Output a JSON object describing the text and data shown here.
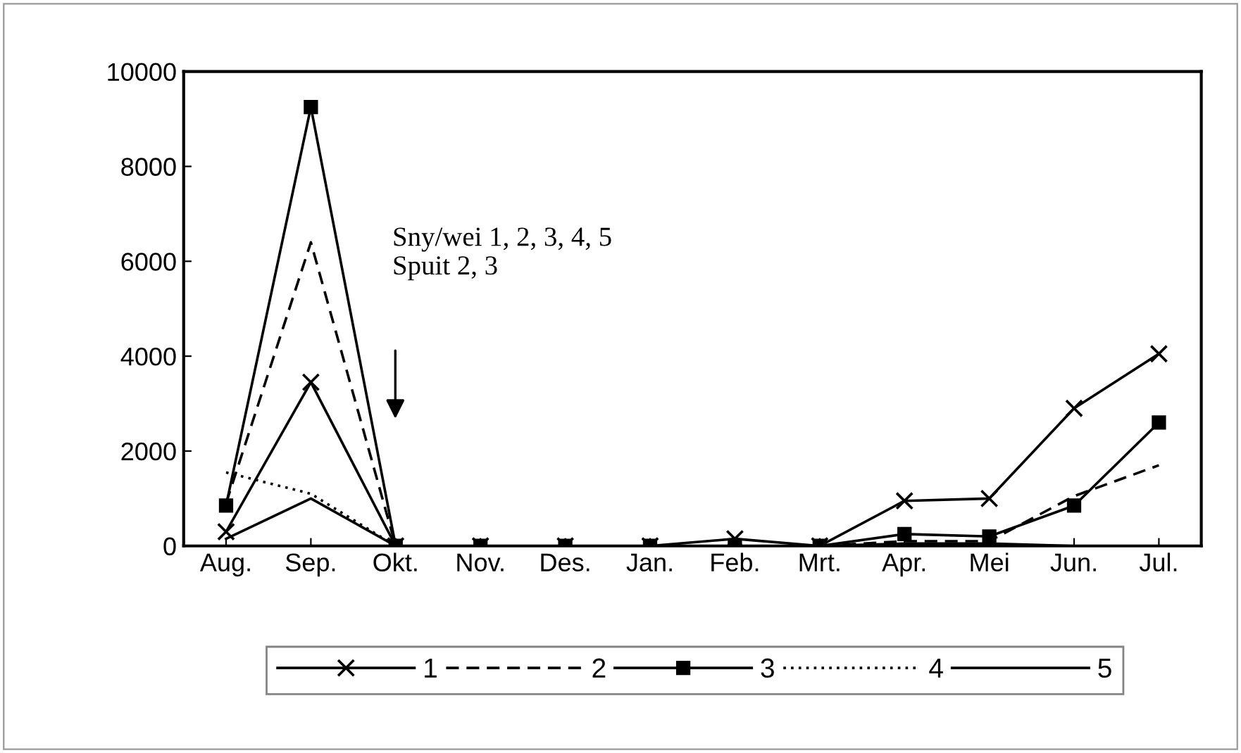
{
  "chart_data": {
    "type": "line",
    "categories": [
      "Aug.",
      "Sep.",
      "Okt.",
      "Nov.",
      "Des.",
      "Jan.",
      "Feb.",
      "Mrt.",
      "Apr.",
      "Mei",
      "Jun.",
      "Jul."
    ],
    "series": [
      {
        "name": "1",
        "color": "#000000",
        "marker": "cross",
        "line_style": "solid",
        "values": [
          300,
          3450,
          0,
          0,
          0,
          0,
          150,
          0,
          950,
          1000,
          2900,
          4050
        ]
      },
      {
        "name": "2",
        "color": "#000000",
        "line_style": "dashed",
        "values": [
          900,
          6400,
          0,
          0,
          0,
          0,
          0,
          0,
          100,
          100,
          1050,
          1700
        ]
      },
      {
        "name": "3",
        "color": "#000000",
        "marker": "square",
        "line_style": "solid",
        "values": [
          850,
          9250,
          0,
          0,
          0,
          0,
          0,
          0,
          250,
          200,
          850,
          2600
        ]
      },
      {
        "name": "4",
        "color": "#000000",
        "line_style": "dotted",
        "values": [
          1550,
          1100,
          0,
          null,
          null,
          null,
          null,
          null,
          null,
          null,
          null,
          null
        ]
      },
      {
        "name": "5",
        "color": "#000000",
        "line_style": "solid",
        "values": [
          150,
          1000,
          0,
          0,
          0,
          0,
          0,
          0,
          50,
          50,
          0,
          0
        ]
      }
    ],
    "ylim": [
      0,
      10000
    ],
    "yticks": [
      0,
      2000,
      4000,
      6000,
      8000,
      10000
    ],
    "grid": false,
    "legend": "bottom",
    "annotations": [
      "Sny/wei 1, 2, 3, 4, 5\nSpuit 2, 3"
    ]
  }
}
